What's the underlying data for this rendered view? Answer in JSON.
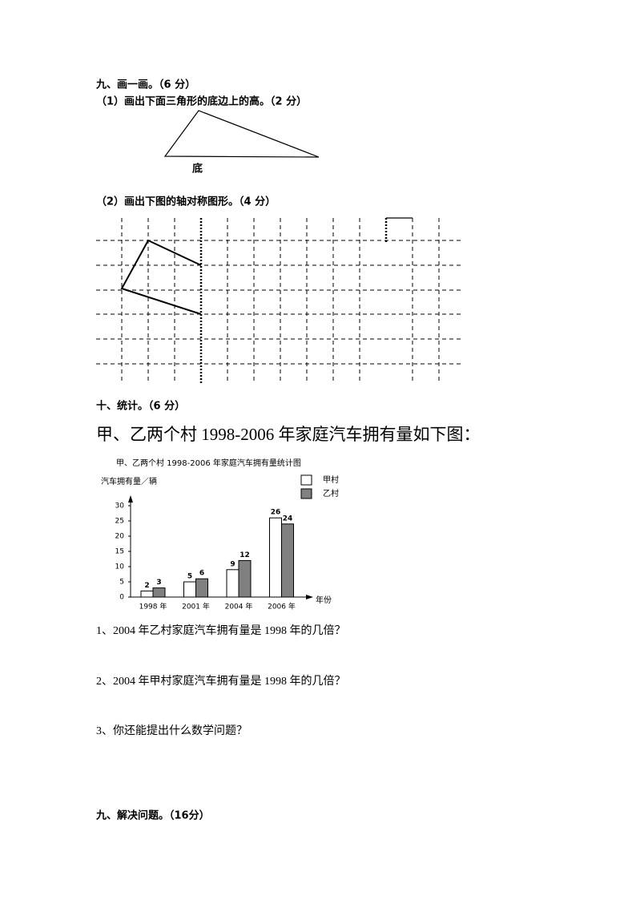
{
  "draw": {
    "heading": "九、画一画。（6 分）",
    "q1": "（1）画出下面三角形的底边上的高。（2 分）",
    "base_label": "底",
    "q2": "（2）画出下图的轴对称图形。（4 分）"
  },
  "stats": {
    "heading": "十、统计。（6 分）",
    "intro": "甲、乙两个村 1998-2006 年家庭汽车拥有量如下图："
  },
  "questions": [
    "1、2004 年乙村家庭汽车拥有量是 1998 年的几倍？",
    "2、2004 年甲村家庭汽车拥有量是 1998 年的几倍？",
    "3、你还能提出什么数学问题？"
  ],
  "solve": {
    "heading": "九、解决问题。（16分）"
  },
  "chart_data": {
    "type": "bar",
    "title": "甲、乙两个村 1998-2006 年家庭汽车拥有量统计图",
    "y_label": "汽车拥有量／辆",
    "x_label": "年份",
    "categories": [
      "1998 年",
      "2001 年",
      "2004 年",
      "2006 年"
    ],
    "series": [
      {
        "name": "甲村",
        "color": "#ffffff",
        "values": [
          2,
          5,
          9,
          26
        ]
      },
      {
        "name": "乙村",
        "color": "#808080",
        "values": [
          3,
          6,
          12,
          24
        ]
      }
    ],
    "ylim": [
      0,
      30
    ],
    "yticks": [
      0,
      5,
      10,
      15,
      20,
      25,
      30
    ]
  }
}
